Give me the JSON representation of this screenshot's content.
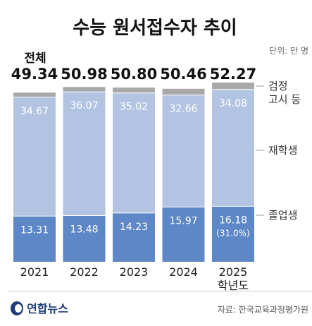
{
  "title": "수능 원서접수자 추이",
  "unit": "단위: 만 명",
  "total_label": "전체",
  "source": "자료: 한국교육과정평가원",
  "brand": "연합뉴스",
  "colors": {
    "bg": "#ffffff",
    "exam": "#a9a9a9",
    "repeat": "#b3c4e3",
    "grad": "#5d87c6",
    "grid": "#d8d8d8"
  },
  "chart_data": {
    "type": "bar",
    "stacked": true,
    "categories": [
      "2021",
      "2022",
      "2023",
      "2024",
      "2025"
    ],
    "category_sublabels": [
      "",
      "",
      "",
      "",
      "학년도"
    ],
    "totals": [
      49.34,
      50.98,
      50.8,
      50.46,
      52.27
    ],
    "total_labels": [
      "49.34",
      "50.98",
      "50.80",
      "50.46",
      "52.27"
    ],
    "series": [
      {
        "name": "졸업생",
        "values": [
          13.31,
          13.48,
          14.23,
          15.97,
          16.18
        ],
        "labels": [
          "13.31",
          "13.48",
          "14.23",
          "15.97",
          "16.18"
        ],
        "notes": [
          "",
          "",
          "",
          "",
          "(31.0%)"
        ]
      },
      {
        "name": "재학생",
        "values": [
          34.67,
          36.07,
          35.02,
          32.66,
          34.08
        ],
        "labels": [
          "34.67",
          "36.07",
          "35.02",
          "32.66",
          "34.08"
        ]
      },
      {
        "name": "검정 고시 등",
        "name_lines": [
          "검정",
          "고시 등"
        ],
        "values": [
          1.36,
          1.43,
          1.55,
          1.83,
          2.01
        ]
      }
    ],
    "ylim": [
      0,
      52.27
    ]
  }
}
